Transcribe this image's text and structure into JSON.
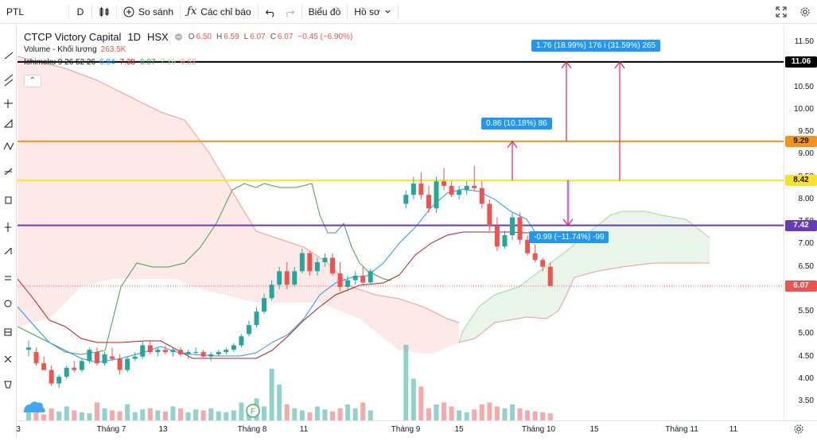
{
  "toolbar": {
    "symbol": "PTL",
    "interval": "D",
    "compare_label": "So sánh",
    "indicators_label": "Các chỉ báo",
    "chart_type_label": "Biểu đồ",
    "profile_label": "Hồ sơ"
  },
  "legend": {
    "title": "CTCP Victory Capital",
    "interval": "1D",
    "exchange": "HSX",
    "o_label": "O",
    "o": "6.50",
    "h_label": "H",
    "h": "6.59",
    "l_label": "L",
    "l": "6.07",
    "c_label": "C",
    "c": "6.07",
    "change": "−0.45 (−6.90%)",
    "volume_label": "Volume - Khối lượng",
    "volume_value": "263.5K",
    "ichimoku_label": "Ichimoku 9 26 52 26",
    "ichi_v1": "6.94",
    "ichi_v2": "7.38",
    "ichi_v3": "6.07",
    "ichi_v4": "7.16",
    "ichi_v5": "6.52"
  },
  "price_axis": {
    "ticks": [
      "11.50",
      "11.00",
      "10.50",
      "10.00",
      "9.50",
      "9.00",
      "8.50",
      "8.00",
      "7.50",
      "7.00",
      "6.50",
      "6.00",
      "5.50",
      "5.00",
      "4.50",
      "4.00",
      "3.50"
    ],
    "tags": [
      {
        "price": "11.06",
        "color": "#000000",
        "text_color": "#ffffff"
      },
      {
        "price": "9.29",
        "color": "#f7931a",
        "text_color": "#131722"
      },
      {
        "price": "8.42",
        "color": "#f7e32a",
        "text_color": "#131722"
      },
      {
        "price": "7.42",
        "color": "#673ab7",
        "text_color": "#ffffff"
      },
      {
        "price": "6.07",
        "color": "#ef5350",
        "text_color": "#ffffff"
      }
    ]
  },
  "time_axis": {
    "labels": [
      "3",
      "Tháng 7",
      "13",
      "Tháng 8",
      "11",
      "Tháng 9",
      "15",
      "Tháng 10",
      "15",
      "Tháng 11",
      "11"
    ]
  },
  "measurements": [
    {
      "text": "1.76 (18.99%) 176",
      "text2": "i (31.59%) 265"
    },
    {
      "text": "0.86 (10.18%) 86"
    },
    {
      "text": "-0.99 (−11.74%) -99"
    }
  ],
  "chart_data": {
    "type": "candlestick",
    "y_range": [
      3.3,
      11.8
    ],
    "horizontal_lines": [
      11.06,
      9.29,
      8.42,
      7.42
    ],
    "last_price": 6.07,
    "candles": [
      [
        4.65,
        4.85,
        4.5,
        4.7
      ],
      [
        4.6,
        4.7,
        4.3,
        4.35
      ],
      [
        4.35,
        4.5,
        4.2,
        4.2
      ],
      [
        4.2,
        4.3,
        3.85,
        3.9
      ],
      [
        3.9,
        4.1,
        3.8,
        4.05
      ],
      [
        4.05,
        4.3,
        4.0,
        4.25
      ],
      [
        4.25,
        4.4,
        4.15,
        4.2
      ],
      [
        4.2,
        4.45,
        4.15,
        4.4
      ],
      [
        4.4,
        4.7,
        4.35,
        4.65
      ],
      [
        4.6,
        4.7,
        4.3,
        4.35
      ],
      [
        4.35,
        4.6,
        4.3,
        4.55
      ],
      [
        4.5,
        4.7,
        4.4,
        4.45
      ],
      [
        4.45,
        4.55,
        4.1,
        4.2
      ],
      [
        4.2,
        4.5,
        4.15,
        4.45
      ],
      [
        4.45,
        4.6,
        4.4,
        4.5
      ],
      [
        4.5,
        4.85,
        4.45,
        4.75
      ],
      [
        4.75,
        4.85,
        4.55,
        4.6
      ],
      [
        4.6,
        4.7,
        4.5,
        4.65
      ],
      [
        4.65,
        4.75,
        4.55,
        4.6
      ],
      [
        4.6,
        4.7,
        4.5,
        4.65
      ],
      [
        4.65,
        4.7,
        4.5,
        4.55
      ],
      [
        4.55,
        4.65,
        4.45,
        4.6
      ],
      [
        4.6,
        4.7,
        4.55,
        4.6
      ],
      [
        4.6,
        4.65,
        4.45,
        4.5
      ],
      [
        4.5,
        4.6,
        4.4,
        4.55
      ],
      [
        4.55,
        4.65,
        4.5,
        4.6
      ],
      [
        4.6,
        4.7,
        4.55,
        4.65
      ],
      [
        4.65,
        4.8,
        4.6,
        4.75
      ],
      [
        4.75,
        5.0,
        4.7,
        4.95
      ],
      [
        5.0,
        5.3,
        4.95,
        5.2
      ],
      [
        5.2,
        5.6,
        5.15,
        5.5
      ],
      [
        5.5,
        5.9,
        5.45,
        5.8
      ],
      [
        5.8,
        6.2,
        5.75,
        6.1
      ],
      [
        6.1,
        6.5,
        6.0,
        6.4
      ],
      [
        6.4,
        6.6,
        6.0,
        6.1
      ],
      [
        6.1,
        6.5,
        6.05,
        6.4
      ],
      [
        6.4,
        6.9,
        6.35,
        6.8
      ],
      [
        6.8,
        6.85,
        6.3,
        6.4
      ],
      [
        6.4,
        6.7,
        6.3,
        6.6
      ],
      [
        6.6,
        6.8,
        6.5,
        6.7
      ],
      [
        6.7,
        6.8,
        6.3,
        6.35
      ],
      [
        6.35,
        6.6,
        5.95,
        6.05
      ],
      [
        6.05,
        6.3,
        5.95,
        6.2
      ],
      [
        6.2,
        6.4,
        6.1,
        6.3
      ],
      [
        6.3,
        6.5,
        6.1,
        6.15
      ],
      [
        6.15,
        6.45,
        6.1,
        6.4
      ],
      [
        7.9,
        8.2,
        7.8,
        8.1
      ],
      [
        8.1,
        8.5,
        8.0,
        8.35
      ],
      [
        8.35,
        8.6,
        8.0,
        8.1
      ],
      [
        8.1,
        8.3,
        7.7,
        7.8
      ],
      [
        7.8,
        8.5,
        7.7,
        8.4
      ],
      [
        8.4,
        8.7,
        8.2,
        8.3
      ],
      [
        8.3,
        8.4,
        8.05,
        8.1
      ],
      [
        8.1,
        8.3,
        8.0,
        8.2
      ],
      [
        8.2,
        8.4,
        8.1,
        8.3
      ],
      [
        8.3,
        8.75,
        8.2,
        8.25
      ],
      [
        8.25,
        8.4,
        7.8,
        7.9
      ],
      [
        7.9,
        8.0,
        7.3,
        7.4
      ],
      [
        7.4,
        7.6,
        6.85,
        6.95
      ],
      [
        6.95,
        7.3,
        6.9,
        7.2
      ],
      [
        7.2,
        7.7,
        7.1,
        7.6
      ],
      [
        7.6,
        7.7,
        7.0,
        7.1
      ],
      [
        7.1,
        7.2,
        6.75,
        6.8
      ],
      [
        6.8,
        7.0,
        6.6,
        6.65
      ],
      [
        6.65,
        6.7,
        6.4,
        6.5
      ],
      [
        6.5,
        6.59,
        6.07,
        6.07
      ]
    ],
    "volume_max": 400
  }
}
